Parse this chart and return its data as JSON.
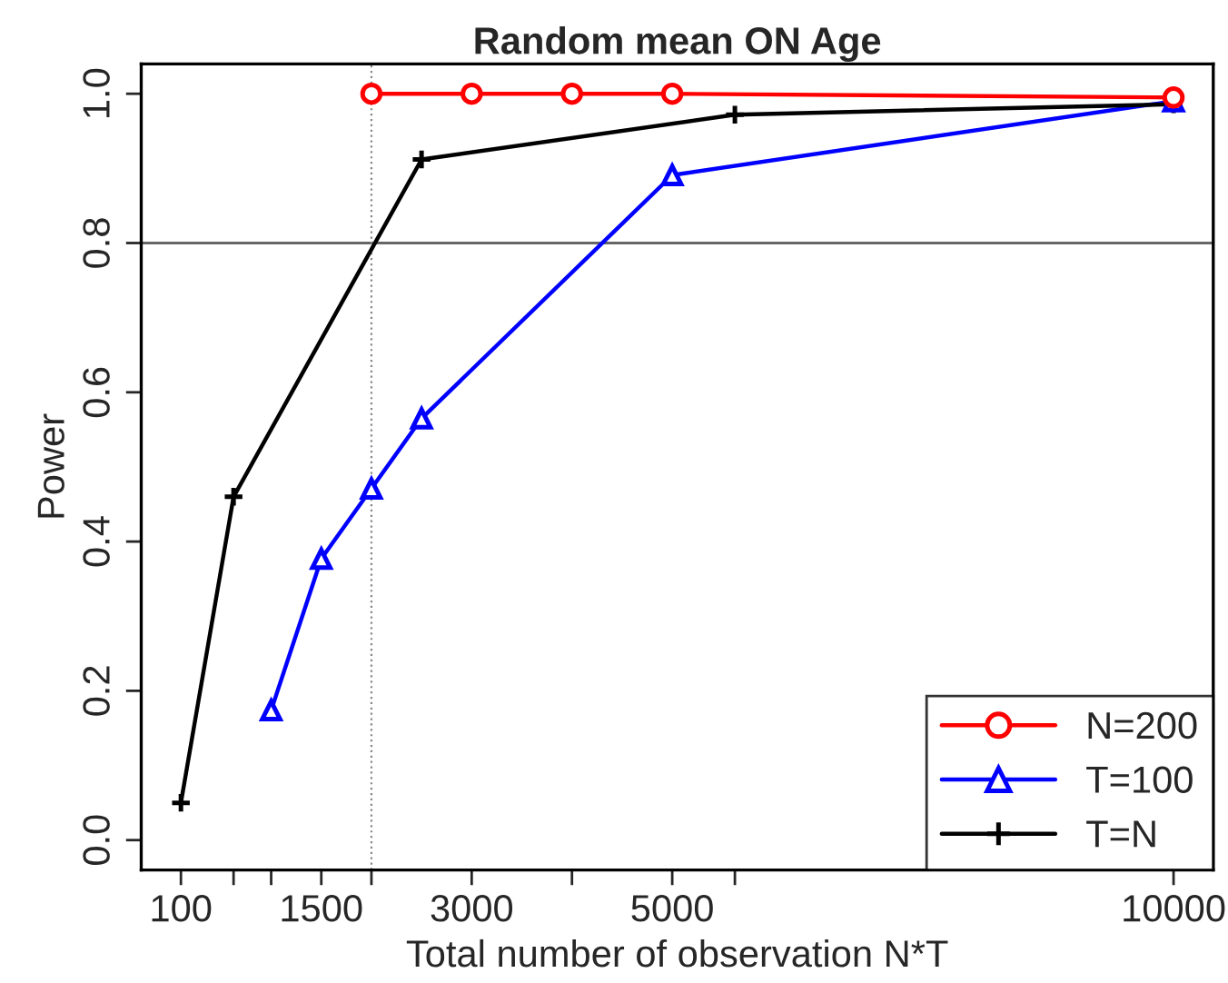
{
  "chart_data": {
    "type": "line",
    "title": "Random mean ON Age",
    "xlabel": "Total number of observation N*T",
    "ylabel": "Power",
    "xlim": [
      -296,
      10396
    ],
    "ylim": [
      -0.04,
      1.04
    ],
    "xticks": [
      100,
      {
        "value": 625,
        "label": null
      },
      {
        "value": 1000,
        "label": null
      },
      1500,
      {
        "value": 2000,
        "label": null
      },
      3000,
      {
        "value": 4000,
        "label": null
      },
      5000,
      {
        "value": 5625,
        "label": null
      },
      10000
    ],
    "yticks": [
      {
        "value": 0,
        "label": "0.0"
      },
      0.2,
      0.4,
      0.6,
      0.8,
      {
        "value": 1,
        "label": "1.0"
      }
    ],
    "grid": false,
    "legend": "bottom right",
    "series": [
      {
        "name": "N=200",
        "color": "#ff0000",
        "marker": "circle",
        "x": [
          2000,
          3000,
          4000,
          5000,
          10000
        ],
        "values": [
          1.0,
          1.0,
          1.0,
          1.0,
          0.995
        ]
      },
      {
        "name": "T=100",
        "color": "#0000ff",
        "marker": "triangle",
        "x": [
          1000,
          1500,
          2000,
          2500,
          5000,
          10000
        ],
        "values": [
          0.174,
          0.377,
          0.471,
          0.565,
          0.891,
          0.99
        ]
      },
      {
        "name": "T=N",
        "color": "#000000",
        "marker": "cross",
        "x": [
          100,
          625,
          2500,
          5625,
          10000
        ],
        "values": [
          0.05,
          0.46,
          0.912,
          0.972,
          0.986
        ]
      }
    ],
    "ref_lines": [
      {
        "axis": "y",
        "value": 0.8,
        "color": "#666666",
        "line_style": "solid"
      },
      {
        "axis": "x",
        "value": 2000,
        "color": "#888888",
        "line_style": "dotted"
      }
    ]
  }
}
